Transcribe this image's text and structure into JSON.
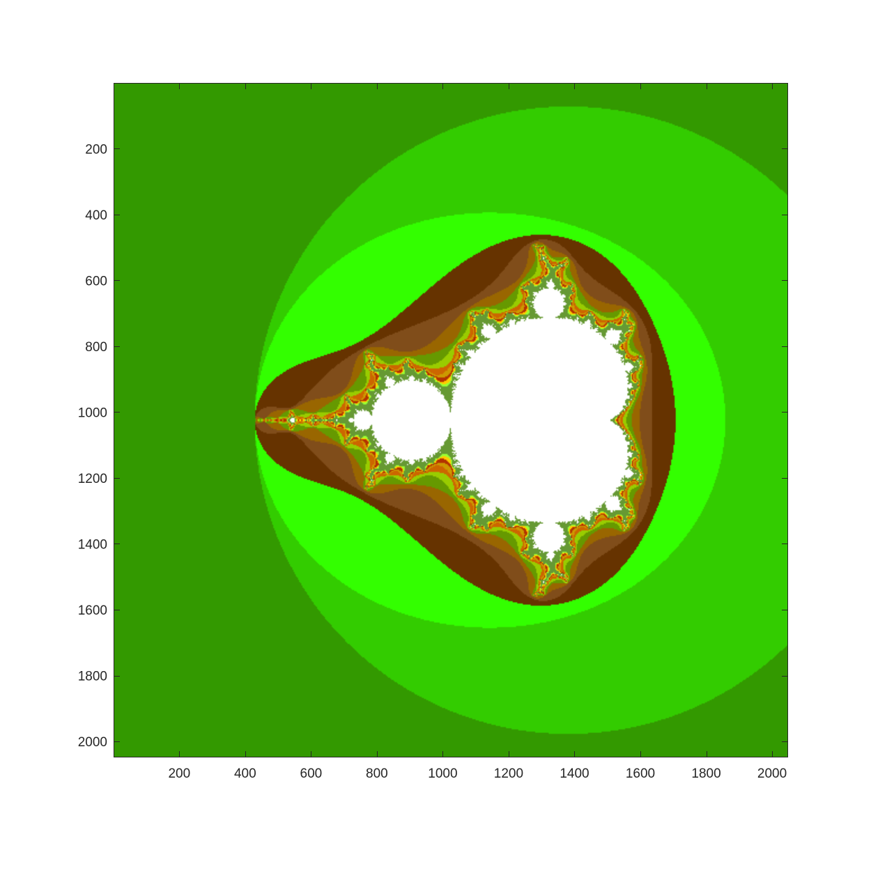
{
  "chart_data": {
    "type": "heatmap",
    "title": "",
    "xlabel": "",
    "ylabel": "",
    "xlim": [
      0.5,
      2048.5
    ],
    "ylim": [
      0.5,
      2048.5
    ],
    "y_reversed": true,
    "image_size": [
      2048,
      2048
    ],
    "x_ticks": [
      200,
      400,
      600,
      800,
      1000,
      1200,
      1400,
      1600,
      1800,
      2000
    ],
    "x_tick_labels": [
      "200",
      "400",
      "600",
      "800",
      "1000",
      "1200",
      "1400",
      "1600",
      "1800",
      "2000"
    ],
    "y_ticks": [
      200,
      400,
      600,
      800,
      1000,
      1200,
      1400,
      1600,
      1800,
      2000
    ],
    "y_tick_labels": [
      "200",
      "400",
      "600",
      "800",
      "1000",
      "1200",
      "1400",
      "1600",
      "1800",
      "2000"
    ],
    "content": "Mandelbrot set escape-time image, interior white",
    "fractal": {
      "center_re": -0.75,
      "center_im": 0.0,
      "span": 4.3,
      "max_iter": 80
    },
    "colormap": [
      "#336600",
      "#339900",
      "#33cc00",
      "#33ff00",
      "#663300",
      "#804d1a",
      "#996600",
      "#669900",
      "#99cc00",
      "#cc6600",
      "#cc9900",
      "#b33300",
      "#ffcc00",
      "#99ff33",
      "#669933"
    ],
    "interior_color": "#ffffff",
    "grid": false
  }
}
